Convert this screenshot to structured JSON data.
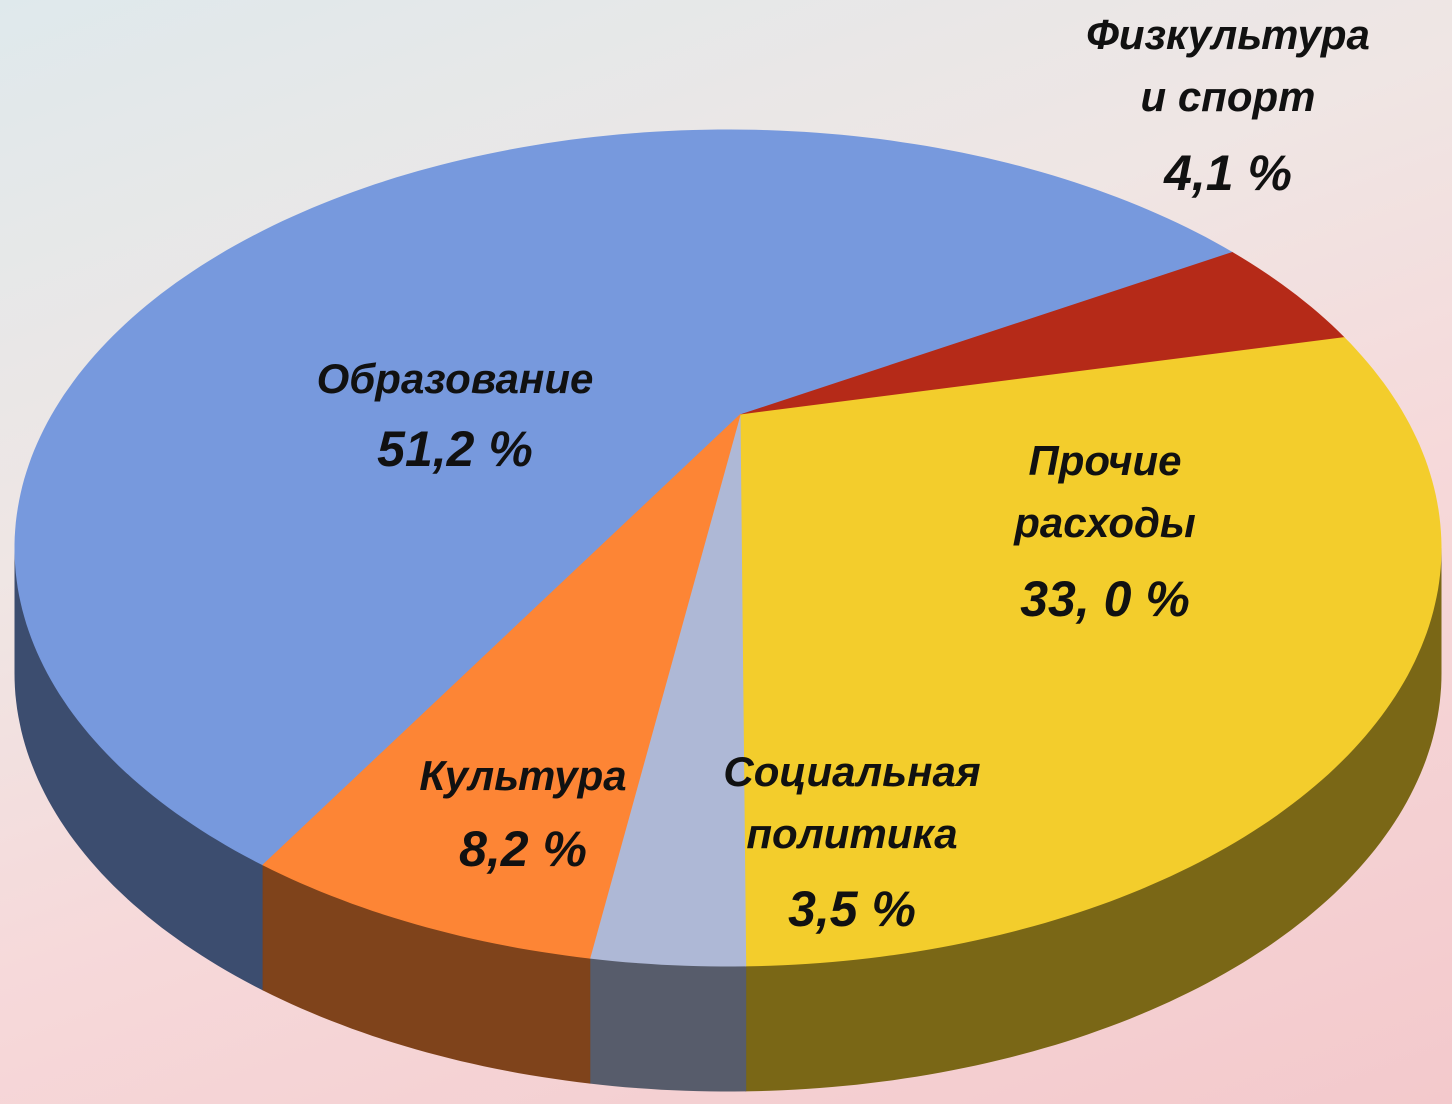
{
  "chart_data": {
    "type": "pie",
    "categories": [
      "Образование",
      "Физкультура и спорт",
      "Прочие расходы",
      "Социальная политика",
      "Культура"
    ],
    "values": [
      51.2,
      4.1,
      33.0,
      3.5,
      8.2
    ],
    "value_labels": [
      "51,2 %",
      "4,1 %",
      "33, 0 %",
      "3,5 %",
      "8,2 %"
    ],
    "colors": [
      "#7799dd",
      "#b52a18",
      "#f3cd2c",
      "#aeb8d6",
      "#fd8535"
    ]
  }
}
